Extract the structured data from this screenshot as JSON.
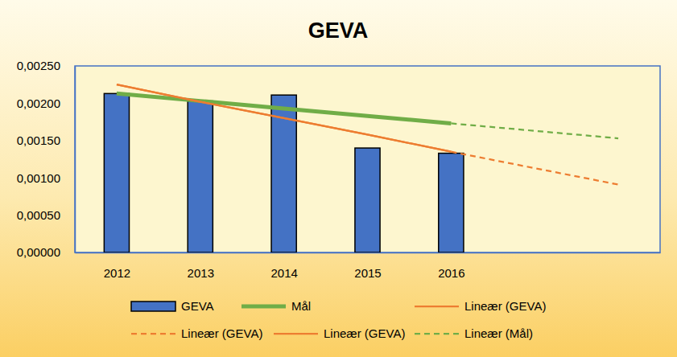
{
  "chart_data": {
    "type": "bar",
    "title": "GEVA",
    "categories": [
      "2012",
      "2013",
      "2014",
      "2015",
      "2016",
      null,
      null
    ],
    "ylim": [
      0,
      0.0025
    ],
    "yticks": [
      {
        "value": 0,
        "label": "0,00000"
      },
      {
        "value": 0.0005,
        "label": "0,00050"
      },
      {
        "value": 0.001,
        "label": "0,00100"
      },
      {
        "value": 0.0015,
        "label": "0,00150"
      },
      {
        "value": 0.002,
        "label": "0,00200"
      },
      {
        "value": 0.0025,
        "label": "0,00250"
      }
    ],
    "grid": false,
    "legend": "bottom",
    "series": [
      {
        "name": "GEVA",
        "type": "bar",
        "color": "#4472c4",
        "values": [
          0.00213,
          0.00203,
          0.00211,
          0.0014,
          0.00133,
          null,
          null
        ]
      },
      {
        "name": "Mål",
        "type": "line",
        "color": "#70ad47",
        "line_style": "solid",
        "values": [
          0.00213,
          0.00203,
          0.00193,
          0.00183,
          0.00173,
          null,
          null
        ]
      },
      {
        "name": "Lineær (GEVA)",
        "type": "line",
        "color": "#ed7d31",
        "line_style": "solid",
        "values": [
          0.00225,
          0.00202,
          0.0018,
          0.00158,
          0.00135,
          null,
          null
        ]
      },
      {
        "name": "Lineær (GEVA)",
        "type": "line",
        "color": "#ed7d31",
        "line_style": "dashed",
        "values": [
          null,
          null,
          null,
          null,
          0.00135,
          0.00113,
          0.00091
        ]
      },
      {
        "name": "Lineær (GEVA)",
        "type": "line",
        "color": "#ed7d31",
        "line_style": "solid",
        "values": [
          0.00225,
          0.00202,
          0.0018,
          0.00158,
          0.00135,
          null,
          null
        ]
      },
      {
        "name": "Lineær (Mål)",
        "type": "line",
        "color": "#70ad47",
        "line_style": "dashed",
        "values": [
          null,
          null,
          null,
          null,
          0.00173,
          0.00163,
          0.00153
        ]
      }
    ]
  }
}
